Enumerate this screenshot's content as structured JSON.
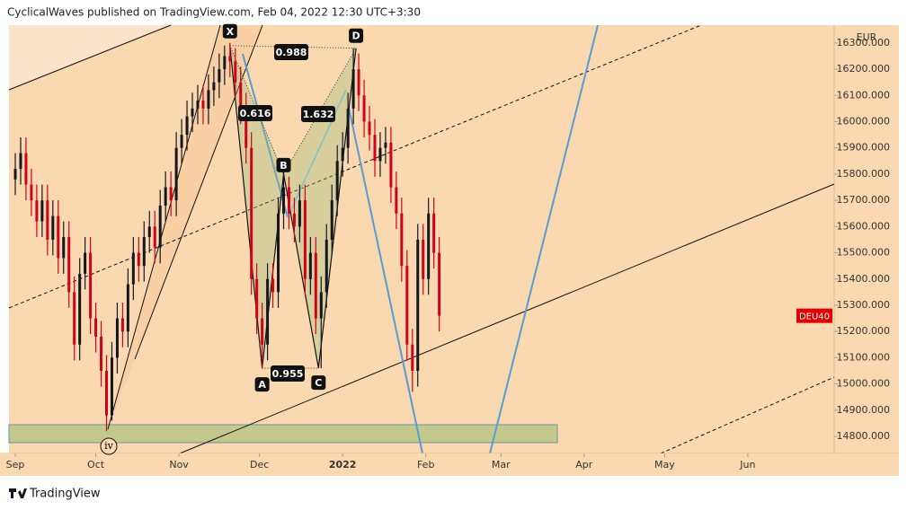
{
  "header": "CyclicalWaves published on TradingView.com, Feb 04, 2022 12:30 UTC+3:30",
  "footer": "TradingView",
  "currency": "EUR",
  "symbol": "DEU40",
  "wave_label": "iv",
  "chart_data": {
    "type": "candlestick",
    "up_color": "#131722",
    "down_color": "#d0021b",
    "xlim": [
      -2.35,
      305.2
    ],
    "ylim": [
      14735,
      16368
    ],
    "xticks": [
      {
        "value": 0,
        "label": "Sep"
      },
      {
        "value": 30,
        "label": "Oct"
      },
      {
        "value": 61,
        "label": "Nov"
      },
      {
        "value": 91,
        "label": "Dec"
      },
      {
        "value": 122,
        "label": "2022"
      },
      {
        "value": 153,
        "label": "Feb"
      },
      {
        "value": 181,
        "label": "Mar"
      },
      {
        "value": 212,
        "label": "Apr"
      },
      {
        "value": 242,
        "label": "May"
      },
      {
        "value": 273,
        "label": "Jun"
      }
    ],
    "yticks": [
      {
        "value": 14800,
        "label": "14800.000"
      },
      {
        "value": 14900,
        "label": "14900.000"
      },
      {
        "value": 15000,
        "label": "15000.000"
      },
      {
        "value": 15100,
        "label": "15100.000"
      },
      {
        "value": 15200,
        "label": "15200.000"
      },
      {
        "value": 15300,
        "label": "15300.000"
      },
      {
        "value": 15400,
        "label": "15400.000"
      },
      {
        "value": 15500,
        "label": "15500.000"
      },
      {
        "value": 15600,
        "label": "15600.000"
      },
      {
        "value": 15700,
        "label": "15700.000"
      },
      {
        "value": 15800,
        "label": "15800.000"
      },
      {
        "value": 15900,
        "label": "15900.000"
      },
      {
        "value": 16000,
        "label": "16000.000"
      },
      {
        "value": 16100,
        "label": "16100.000"
      },
      {
        "value": 16200,
        "label": "16200.000"
      },
      {
        "value": 16300,
        "label": "16300.000"
      }
    ],
    "x": [
      0,
      2,
      4,
      6,
      8,
      10,
      12,
      14,
      16,
      18,
      20,
      22,
      24,
      26,
      28,
      30,
      32,
      34,
      36,
      38,
      40,
      42,
      44,
      46,
      48,
      50,
      52,
      54,
      56,
      58,
      60,
      62,
      64,
      66,
      68,
      70,
      72,
      74,
      76,
      78,
      80,
      82,
      84,
      86,
      88,
      90,
      92,
      94,
      96,
      98,
      100,
      102,
      104,
      106,
      108,
      110,
      112,
      114,
      116,
      118,
      120,
      122,
      124,
      126,
      128,
      130,
      132,
      134,
      136,
      138,
      140,
      142,
      144,
      146,
      148,
      150,
      152,
      154,
      156,
      158
    ],
    "open": [
      15780,
      15820,
      15880,
      15760,
      15700,
      15620,
      15700,
      15550,
      15640,
      15480,
      15560,
      15350,
      15150,
      15420,
      15500,
      15250,
      15180,
      15050,
      14880,
      15100,
      15250,
      15200,
      15380,
      15500,
      15450,
      15560,
      15600,
      15520,
      15680,
      15750,
      15700,
      15900,
      15950,
      16020,
      16050,
      16080,
      16050,
      16120,
      16150,
      16200,
      16250,
      16230,
      16150,
      16050,
      15900,
      15400,
      15250,
      15150,
      15400,
      15350,
      15650,
      15750,
      15650,
      15600,
      15700,
      15400,
      15500,
      15250,
      15350,
      15550,
      15700,
      15850,
      15900,
      16050,
      16200,
      16100,
      16000,
      15950,
      15850,
      15900,
      15920,
      15750,
      15650,
      15450,
      15150,
      15050,
      15550,
      15400,
      15650,
      15500
    ],
    "high": [
      15880,
      15940,
      15940,
      15820,
      15760,
      15760,
      15760,
      15700,
      15700,
      15620,
      15620,
      15410,
      15480,
      15560,
      15560,
      15310,
      15240,
      15110,
      15160,
      15310,
      15310,
      15440,
      15560,
      15560,
      15620,
      15660,
      15660,
      15740,
      15810,
      15810,
      15960,
      16010,
      16080,
      16110,
      16140,
      16140,
      16180,
      16210,
      16260,
      16290,
      16300,
      16280,
      16210,
      16110,
      15960,
      15460,
      15310,
      15460,
      15460,
      15710,
      15810,
      15790,
      15710,
      15760,
      15760,
      15560,
      15560,
      15410,
      15610,
      15760,
      15910,
      15960,
      16110,
      16280,
      16260,
      16160,
      16060,
      16010,
      15960,
      15980,
      15980,
      15810,
      15710,
      15510,
      15210,
      15610,
      15610,
      15710,
      15710,
      15560
    ],
    "low": [
      15720,
      15760,
      15700,
      15640,
      15560,
      15560,
      15490,
      15490,
      15420,
      15420,
      15290,
      15090,
      15090,
      15360,
      15190,
      15120,
      14990,
      14820,
      14860,
      15040,
      15140,
      15140,
      15320,
      15390,
      15390,
      15500,
      15460,
      15460,
      15620,
      15640,
      15640,
      15840,
      15890,
      15960,
      15990,
      15990,
      15990,
      16060,
      16090,
      16140,
      16170,
      16090,
      15990,
      15840,
      15340,
      15190,
      15060,
      15090,
      15290,
      15290,
      15590,
      15590,
      15540,
      15540,
      15340,
      15340,
      15190,
      15060,
      15290,
      15490,
      15640,
      15790,
      15840,
      15990,
      16040,
      15940,
      15890,
      15790,
      15790,
      15840,
      15690,
      15590,
      15390,
      15090,
      14970,
      14990,
      15340,
      15340,
      15440,
      15200
    ],
    "close": [
      15820,
      15880,
      15760,
      15700,
      15620,
      15700,
      15550,
      15640,
      15480,
      15560,
      15350,
      15150,
      15420,
      15500,
      15250,
      15180,
      15050,
      14880,
      15100,
      15250,
      15200,
      15380,
      15500,
      15450,
      15560,
      15600,
      15520,
      15680,
      15750,
      15700,
      15900,
      15950,
      16020,
      16050,
      16080,
      16050,
      16120,
      16150,
      16200,
      16250,
      16230,
      16150,
      16050,
      15900,
      15400,
      15250,
      15150,
      15400,
      15350,
      15650,
      15750,
      15650,
      15600,
      15700,
      15400,
      15500,
      15250,
      15350,
      15550,
      15700,
      15850,
      15900,
      16050,
      16200,
      16100,
      16000,
      15950,
      15850,
      15900,
      15920,
      15750,
      15650,
      15450,
      15150,
      15050,
      15550,
      15400,
      15650,
      15500,
      15260
    ],
    "pattern": {
      "labels": [
        "X",
        "A",
        "B",
        "C",
        "D"
      ],
      "x": [
        80,
        92,
        100,
        113,
        127
      ],
      "values": [
        16290,
        15060,
        15800,
        15060,
        16280
      ]
    },
    "ratios": [
      0.988,
      0.616,
      1.632,
      0.955
    ]
  }
}
